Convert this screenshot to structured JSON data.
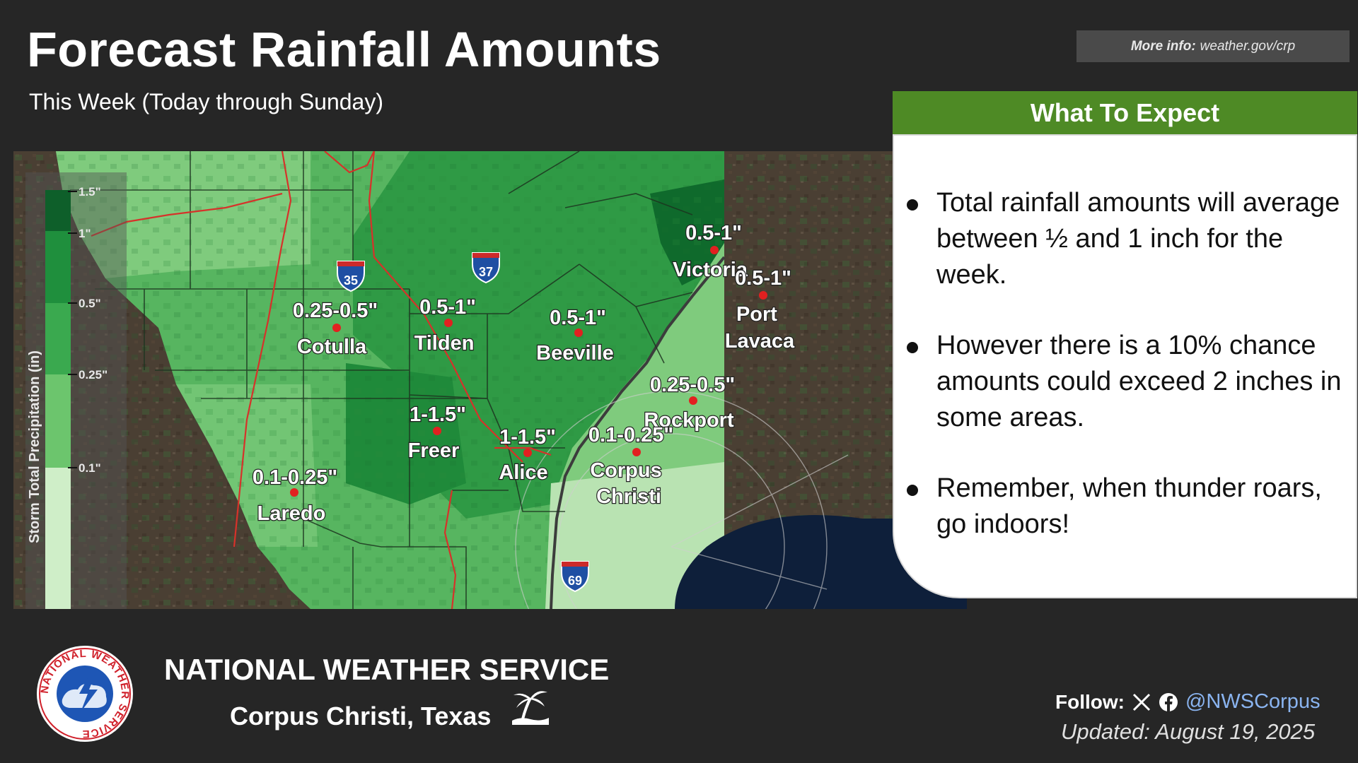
{
  "header": {
    "title": "Forecast Rainfall Amounts",
    "subtitle": "This Week (Today through Sunday)",
    "more_info_label": "More info:",
    "more_info_url": "weather.gov/crp"
  },
  "legend": {
    "axis_label": "Storm Total Precipitation (in)",
    "ticks": [
      "1.5\"",
      "1\"",
      "0.5\"",
      "0.25\"",
      "0.1\""
    ],
    "colors": [
      "#0e5f2a",
      "#1f8f3d",
      "#3aa94f",
      "#6cc56d",
      "#a6dca0",
      "#cfeec8"
    ]
  },
  "map": {
    "highways": [
      "35",
      "37",
      "69"
    ],
    "locations": [
      {
        "name": "Cotulla",
        "amount": "0.25-0.5\""
      },
      {
        "name": "Tilden",
        "amount": "0.5-1\""
      },
      {
        "name": "Beeville",
        "amount": "0.5-1\""
      },
      {
        "name": "Victoria",
        "amount": "0.5-1\""
      },
      {
        "name": "Port Lavaca",
        "amount": "0.5-1\""
      },
      {
        "name": "Rockport",
        "amount": "0.25-0.5\""
      },
      {
        "name": "Freer",
        "amount": "1-1.5\""
      },
      {
        "name": "Alice",
        "amount": "1-1.5\""
      },
      {
        "name": "Corpus Christi",
        "amount": "0.1-0.25\""
      },
      {
        "name": "Laredo",
        "amount": "0.1-0.25\""
      }
    ]
  },
  "panel": {
    "title": "What To Expect",
    "bullets": [
      "Total rainfall amounts will average between ½ and 1 inch for the week.",
      "However there is a 10% chance amounts could exceed 2 inches in some areas.",
      "Remember, when thunder roars, go indoors!"
    ]
  },
  "footer": {
    "org": "NATIONAL WEATHER SERVICE",
    "office": "Corpus Christi, Texas",
    "follow_label": "Follow:",
    "handle": "@NWSCorpus",
    "updated": "Updated: August 19, 2025",
    "logo_ring_text": "NATIONAL WEATHER SERVICE"
  }
}
